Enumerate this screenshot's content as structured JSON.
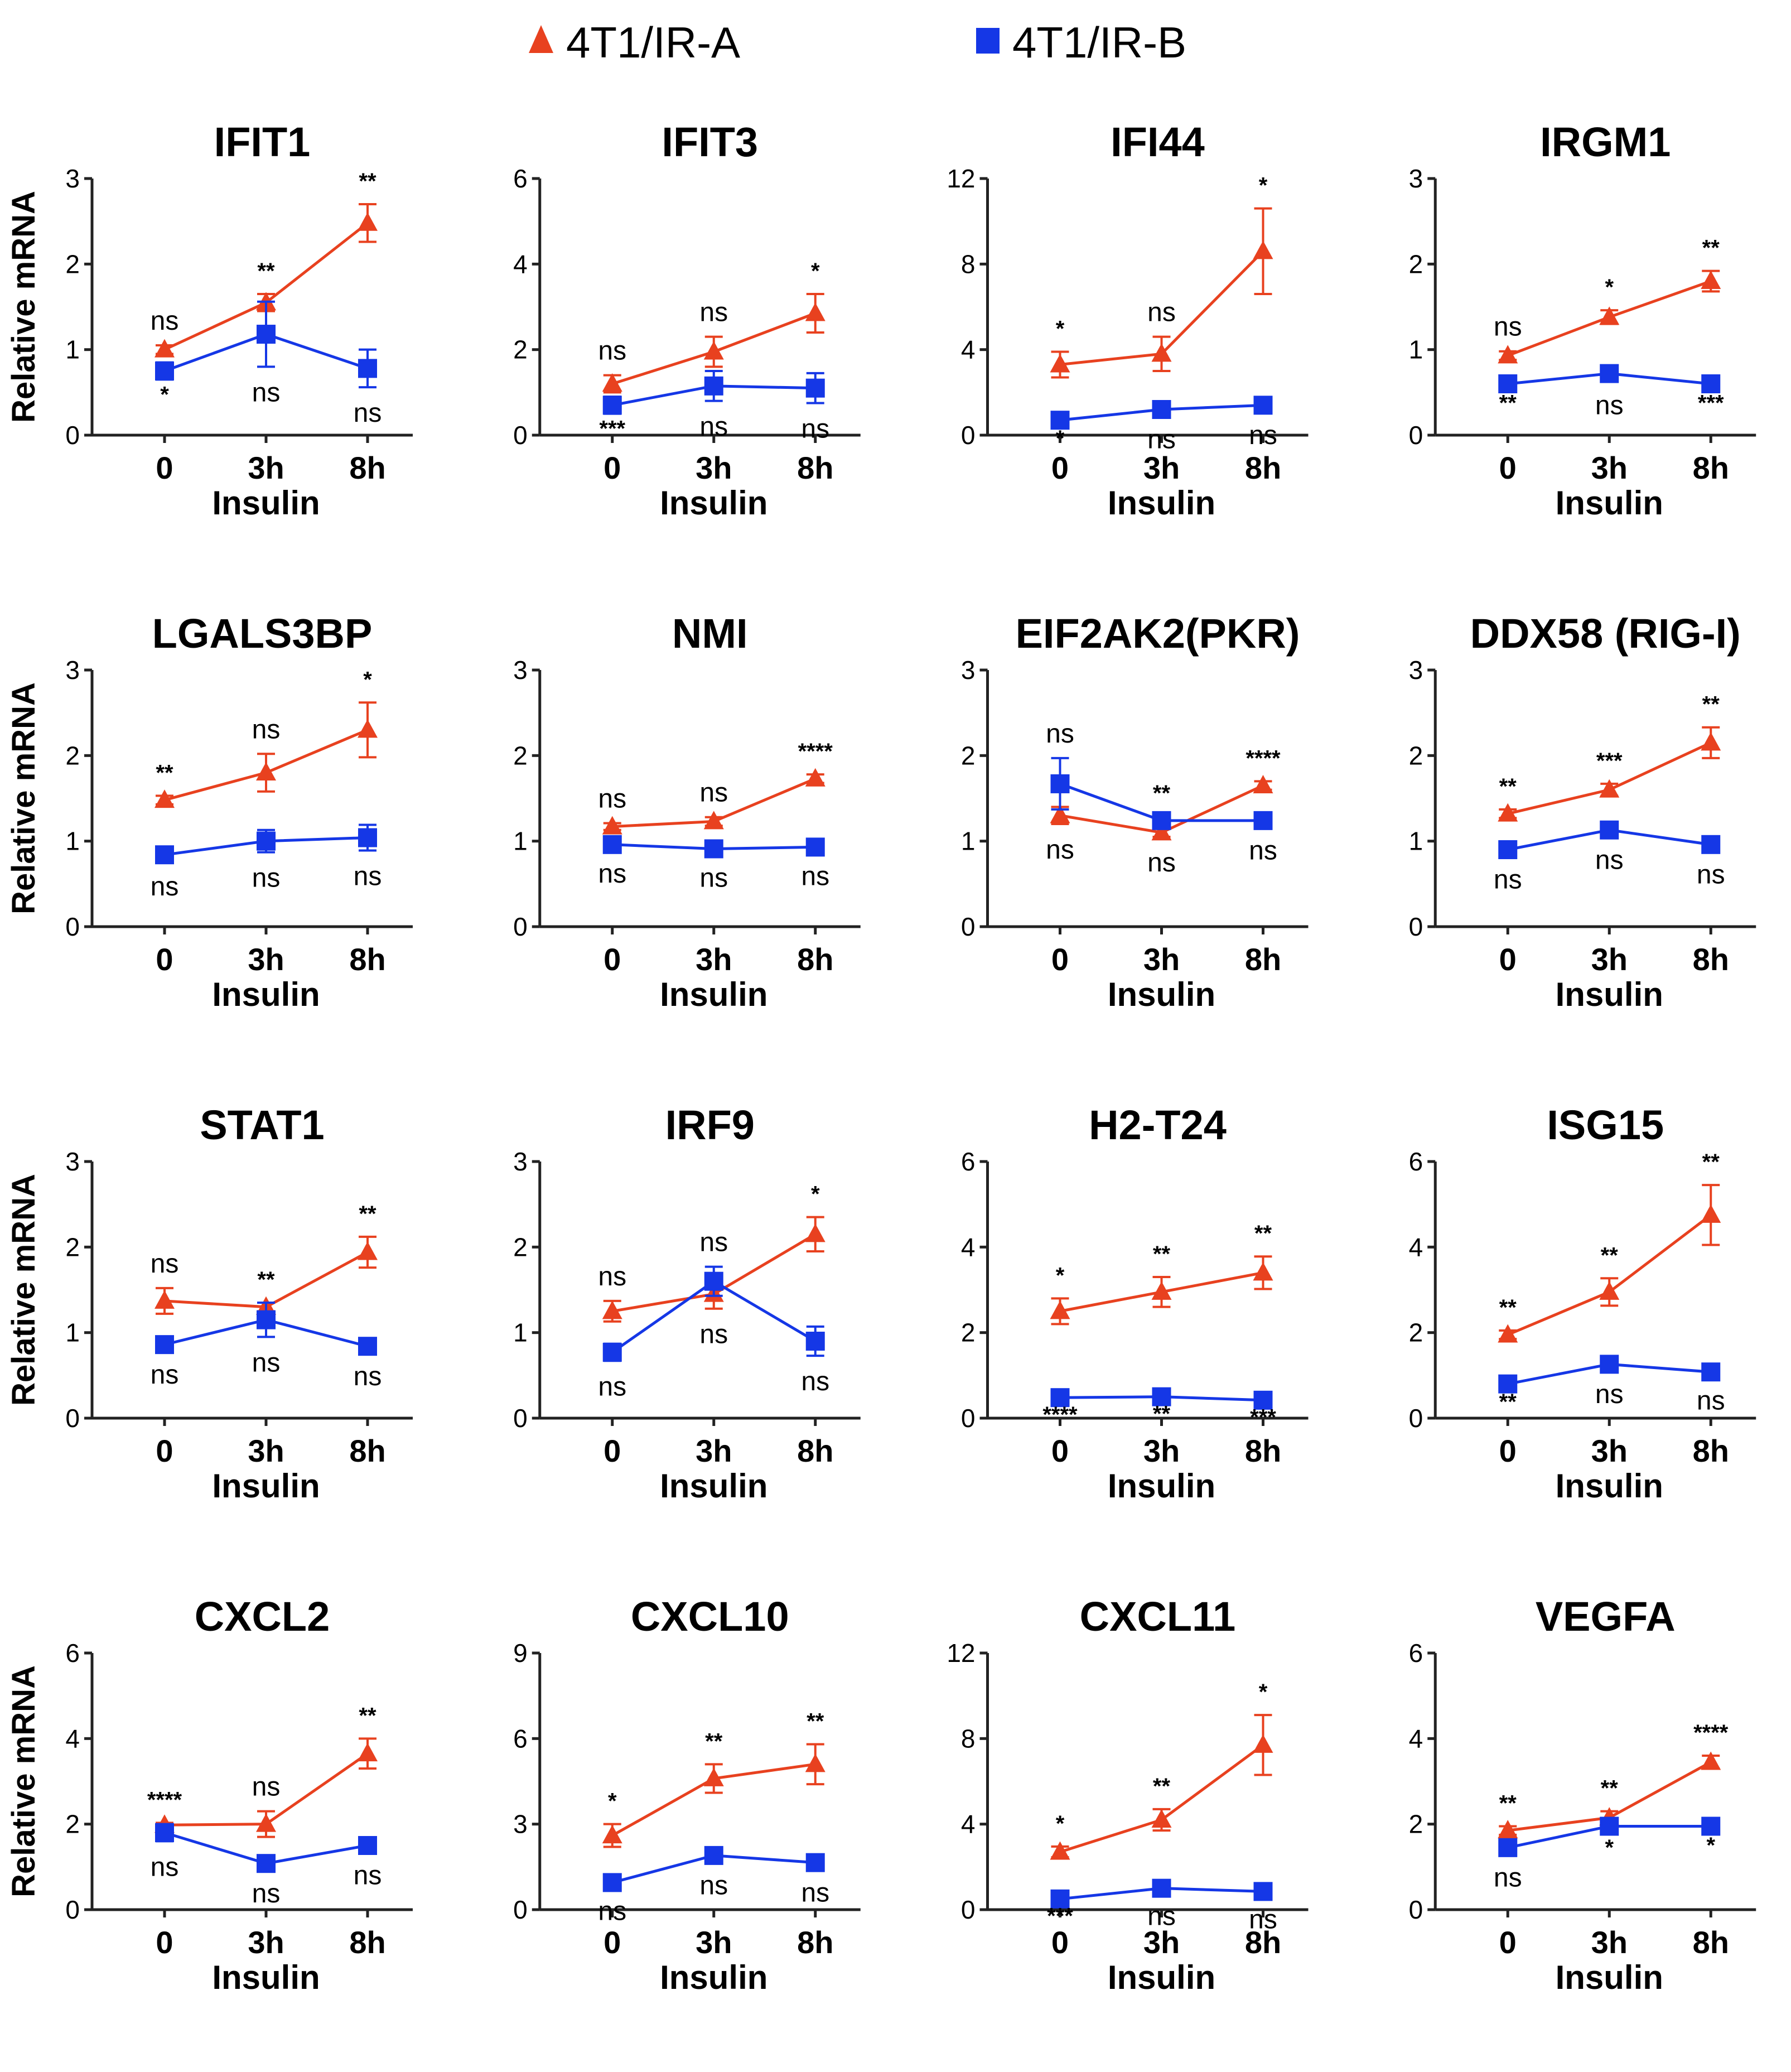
{
  "legend": {
    "series_a": {
      "label": "4T1/IR-A",
      "color": "#e8411f",
      "marker": "triangle"
    },
    "series_b": {
      "label": "4T1/IR-B",
      "color": "#1537e6",
      "marker": "square"
    }
  },
  "chart_data": [
    {
      "type": "line",
      "title": "IFIT1",
      "ylabel": "Relative mRNA",
      "xlabel": "Insulin",
      "categories": [
        "0",
        "3h",
        "8h"
      ],
      "ylim": [
        0,
        3
      ],
      "yticks": [
        "0",
        "1",
        "2",
        "3"
      ],
      "series": [
        {
          "name": "4T1/IR-A",
          "values": [
            1.0,
            1.55,
            2.48
          ],
          "errors": [
            0.05,
            0.1,
            0.22
          ],
          "labels": [
            "ns",
            "**",
            "**"
          ]
        },
        {
          "name": "4T1/IR-B",
          "values": [
            0.75,
            1.18,
            0.78
          ],
          "errors": [
            0.1,
            0.38,
            0.22
          ],
          "labels": [
            "*",
            "ns",
            "ns"
          ]
        }
      ]
    },
    {
      "type": "line",
      "title": "IFIT3",
      "ylabel": "",
      "xlabel": "Insulin",
      "categories": [
        "0",
        "3h",
        "8h"
      ],
      "ylim": [
        0,
        6
      ],
      "yticks": [
        "0",
        "2",
        "4",
        "6"
      ],
      "series": [
        {
          "name": "4T1/IR-A",
          "values": [
            1.2,
            1.95,
            2.85
          ],
          "errors": [
            0.2,
            0.35,
            0.45
          ],
          "labels": [
            "ns",
            "ns",
            "*"
          ]
        },
        {
          "name": "4T1/IR-B",
          "values": [
            0.7,
            1.15,
            1.1
          ],
          "errors": [
            0.2,
            0.35,
            0.35
          ],
          "labels": [
            "***",
            "ns",
            "ns"
          ]
        }
      ]
    },
    {
      "type": "line",
      "title": "IFI44",
      "ylabel": "",
      "xlabel": "Insulin",
      "categories": [
        "0",
        "3h",
        "8h"
      ],
      "ylim": [
        0,
        12
      ],
      "yticks": [
        "0",
        "4",
        "8",
        "12"
      ],
      "series": [
        {
          "name": "4T1/IR-A",
          "values": [
            3.3,
            3.8,
            8.6
          ],
          "errors": [
            0.6,
            0.8,
            2.0
          ],
          "labels": [
            "*",
            "ns",
            "*"
          ]
        },
        {
          "name": "4T1/IR-B",
          "values": [
            0.7,
            1.2,
            1.4
          ],
          "errors": [
            0.15,
            0.2,
            0.2
          ],
          "labels": [
            "*",
            "ns",
            "ns"
          ]
        }
      ]
    },
    {
      "type": "line",
      "title": "IRGM1",
      "ylabel": "",
      "xlabel": "Insulin",
      "categories": [
        "0",
        "3h",
        "8h"
      ],
      "ylim": [
        0,
        3
      ],
      "yticks": [
        "0",
        "1",
        "2",
        "3"
      ],
      "series": [
        {
          "name": "4T1/IR-A",
          "values": [
            0.93,
            1.38,
            1.8
          ],
          "errors": [
            0.05,
            0.08,
            0.12
          ],
          "labels": [
            "ns",
            "*",
            "**"
          ]
        },
        {
          "name": "4T1/IR-B",
          "values": [
            0.6,
            0.72,
            0.6
          ],
          "errors": [
            0.05,
            0.07,
            0.05
          ],
          "labels": [
            "**",
            "ns",
            "***"
          ]
        }
      ]
    },
    {
      "type": "line",
      "title": "LGALS3BP",
      "ylabel": "Relative mRNA",
      "xlabel": "Insulin",
      "categories": [
        "0",
        "3h",
        "8h"
      ],
      "ylim": [
        0,
        3
      ],
      "yticks": [
        "0",
        "1",
        "2",
        "3"
      ],
      "series": [
        {
          "name": "4T1/IR-A",
          "values": [
            1.48,
            1.8,
            2.3
          ],
          "errors": [
            0.05,
            0.22,
            0.32
          ],
          "labels": [
            "**",
            "ns",
            "*"
          ]
        },
        {
          "name": "4T1/IR-B",
          "values": [
            0.84,
            1.0,
            1.04
          ],
          "errors": [
            0.07,
            0.13,
            0.15
          ],
          "labels": [
            "ns",
            "ns",
            "ns"
          ]
        }
      ]
    },
    {
      "type": "line",
      "title": "NMI",
      "ylabel": "",
      "xlabel": "Insulin",
      "categories": [
        "0",
        "3h",
        "8h"
      ],
      "ylim": [
        0,
        3
      ],
      "yticks": [
        "0",
        "1",
        "2",
        "3"
      ],
      "series": [
        {
          "name": "4T1/IR-A",
          "values": [
            1.17,
            1.23,
            1.73
          ],
          "errors": [
            0.04,
            0.05,
            0.05
          ],
          "labels": [
            "ns",
            "ns",
            "****"
          ]
        },
        {
          "name": "4T1/IR-B",
          "values": [
            0.96,
            0.91,
            0.93
          ],
          "errors": [
            0.04,
            0.04,
            0.04
          ],
          "labels": [
            "ns",
            "ns",
            "ns"
          ]
        }
      ]
    },
    {
      "type": "line",
      "title": "EIF2AK2(PKR)",
      "ylabel": "",
      "xlabel": "Insulin",
      "categories": [
        "0",
        "3h",
        "8h"
      ],
      "ylim": [
        0,
        3
      ],
      "yticks": [
        "0",
        "1",
        "2",
        "3"
      ],
      "series": [
        {
          "name": "4T1/IR-A",
          "values": [
            1.3,
            1.1,
            1.65
          ],
          "errors": [
            0.1,
            0.05,
            0.05
          ],
          "labels": [
            "ns",
            "ns",
            "****"
          ]
        },
        {
          "name": "4T1/IR-B",
          "values": [
            1.67,
            1.24,
            1.24
          ],
          "errors": [
            0.3,
            0.05,
            0.05
          ],
          "labels": [
            "ns",
            "**",
            "ns"
          ]
        }
      ]
    },
    {
      "type": "line",
      "title": "DDX58 (RIG-I)",
      "ylabel": "",
      "xlabel": "Insulin",
      "categories": [
        "0",
        "3h",
        "8h"
      ],
      "ylim": [
        0,
        3
      ],
      "yticks": [
        "0",
        "1",
        "2",
        "3"
      ],
      "series": [
        {
          "name": "4T1/IR-A",
          "values": [
            1.32,
            1.6,
            2.15
          ],
          "errors": [
            0.05,
            0.07,
            0.18
          ],
          "labels": [
            "**",
            "***",
            "**"
          ]
        },
        {
          "name": "4T1/IR-B",
          "values": [
            0.9,
            1.13,
            0.96
          ],
          "errors": [
            0.05,
            0.05,
            0.05
          ],
          "labels": [
            "ns",
            "ns",
            "ns"
          ]
        }
      ]
    },
    {
      "type": "line",
      "title": "STAT1",
      "ylabel": "Relative mRNA",
      "xlabel": "Insulin",
      "categories": [
        "0",
        "3h",
        "8h"
      ],
      "ylim": [
        0,
        3
      ],
      "yticks": [
        "0",
        "1",
        "2",
        "3"
      ],
      "series": [
        {
          "name": "4T1/IR-A",
          "values": [
            1.37,
            1.3,
            1.94
          ],
          "errors": [
            0.15,
            0.05,
            0.18
          ],
          "labels": [
            "ns",
            "**",
            "**"
          ]
        },
        {
          "name": "4T1/IR-B",
          "values": [
            0.86,
            1.15,
            0.84
          ],
          "errors": [
            0.05,
            0.2,
            0.05
          ],
          "labels": [
            "ns",
            "ns",
            "ns"
          ]
        }
      ]
    },
    {
      "type": "line",
      "title": "IRF9",
      "ylabel": "",
      "xlabel": "Insulin",
      "categories": [
        "0",
        "3h",
        "8h"
      ],
      "ylim": [
        0,
        3
      ],
      "yticks": [
        "0",
        "1",
        "2",
        "3"
      ],
      "series": [
        {
          "name": "4T1/IR-A",
          "values": [
            1.25,
            1.45,
            2.15
          ],
          "errors": [
            0.12,
            0.17,
            0.2
          ],
          "labels": [
            "ns",
            "ns",
            "*"
          ]
        },
        {
          "name": "4T1/IR-B",
          "values": [
            0.77,
            1.6,
            0.9
          ],
          "errors": [
            0.1,
            0.17,
            0.17
          ],
          "labels": [
            "ns",
            "ns",
            "ns"
          ]
        }
      ]
    },
    {
      "type": "line",
      "title": "H2-T24",
      "ylabel": "",
      "xlabel": "Insulin",
      "categories": [
        "0",
        "3h",
        "8h"
      ],
      "ylim": [
        0,
        6
      ],
      "yticks": [
        "0",
        "2",
        "4",
        "6"
      ],
      "series": [
        {
          "name": "4T1/IR-A",
          "values": [
            2.5,
            2.95,
            3.4
          ],
          "errors": [
            0.3,
            0.35,
            0.38
          ],
          "labels": [
            "*",
            "**",
            "**"
          ]
        },
        {
          "name": "4T1/IR-B",
          "values": [
            0.48,
            0.5,
            0.42
          ],
          "errors": [
            0.05,
            0.05,
            0.05
          ],
          "labels": [
            "****",
            "**",
            "***"
          ]
        }
      ]
    },
    {
      "type": "line",
      "title": "ISG15",
      "ylabel": "",
      "xlabel": "Insulin",
      "categories": [
        "0",
        "3h",
        "8h"
      ],
      "ylim": [
        0,
        6
      ],
      "yticks": [
        "0",
        "2",
        "4",
        "6"
      ],
      "series": [
        {
          "name": "4T1/IR-A",
          "values": [
            1.95,
            2.95,
            4.75
          ],
          "errors": [
            0.1,
            0.32,
            0.7
          ],
          "labels": [
            "**",
            "**",
            "**"
          ]
        },
        {
          "name": "4T1/IR-B",
          "values": [
            0.8,
            1.26,
            1.08
          ],
          "errors": [
            0.07,
            0.1,
            0.07
          ],
          "labels": [
            "**",
            "ns",
            "ns"
          ]
        }
      ]
    },
    {
      "type": "line",
      "title": "CXCL2",
      "ylabel": "Relative mRNA",
      "xlabel": "Insulin",
      "categories": [
        "0",
        "3h",
        "8h"
      ],
      "ylim": [
        0,
        6
      ],
      "yticks": [
        "0",
        "2",
        "4",
        "6"
      ],
      "series": [
        {
          "name": "4T1/IR-A",
          "values": [
            1.98,
            2.0,
            3.65
          ],
          "errors": [
            0.05,
            0.3,
            0.35
          ],
          "labels": [
            "****",
            "ns",
            "**"
          ]
        },
        {
          "name": "4T1/IR-B",
          "values": [
            1.8,
            1.08,
            1.5
          ],
          "errors": [
            0.2,
            0.1,
            0.1
          ],
          "labels": [
            "ns",
            "ns",
            "ns"
          ]
        }
      ]
    },
    {
      "type": "line",
      "title": "CXCL10",
      "ylabel": "",
      "xlabel": "Insulin",
      "categories": [
        "0",
        "3h",
        "8h"
      ],
      "ylim": [
        0,
        9
      ],
      "yticks": [
        "0",
        "3",
        "6",
        "9"
      ],
      "series": [
        {
          "name": "4T1/IR-A",
          "values": [
            2.6,
            4.6,
            5.1
          ],
          "errors": [
            0.4,
            0.5,
            0.7
          ],
          "labels": [
            "*",
            "**",
            "**"
          ]
        },
        {
          "name": "4T1/IR-B",
          "values": [
            0.95,
            1.9,
            1.65
          ],
          "errors": [
            0.1,
            0.15,
            0.15
          ],
          "labels": [
            "ns",
            "ns",
            "ns"
          ]
        }
      ]
    },
    {
      "type": "line",
      "title": "CXCL11",
      "ylabel": "",
      "xlabel": "Insulin",
      "categories": [
        "0",
        "3h",
        "8h"
      ],
      "ylim": [
        0,
        12
      ],
      "yticks": [
        "0",
        "4",
        "8",
        "12"
      ],
      "series": [
        {
          "name": "4T1/IR-A",
          "values": [
            2.7,
            4.2,
            7.7
          ],
          "errors": [
            0.25,
            0.5,
            1.4
          ],
          "labels": [
            "*",
            "**",
            "*"
          ]
        },
        {
          "name": "4T1/IR-B",
          "values": [
            0.5,
            1.0,
            0.85
          ],
          "errors": [
            0.1,
            0.1,
            0.1
          ],
          "labels": [
            "***",
            "ns",
            "ns"
          ]
        }
      ]
    },
    {
      "type": "line",
      "title": "VEGFA",
      "ylabel": "",
      "xlabel": "Insulin",
      "categories": [
        "0",
        "3h",
        "8h"
      ],
      "ylim": [
        0,
        6
      ],
      "yticks": [
        "0",
        "2",
        "4",
        "6"
      ],
      "series": [
        {
          "name": "4T1/IR-A",
          "values": [
            1.85,
            2.15,
            3.45
          ],
          "errors": [
            0.1,
            0.15,
            0.15
          ],
          "labels": [
            "**",
            "**",
            "****"
          ]
        },
        {
          "name": "4T1/IR-B",
          "values": [
            1.45,
            1.95,
            1.95
          ],
          "errors": [
            0.1,
            0.15,
            0.1
          ],
          "labels": [
            "ns",
            "*",
            "*"
          ]
        }
      ]
    }
  ]
}
